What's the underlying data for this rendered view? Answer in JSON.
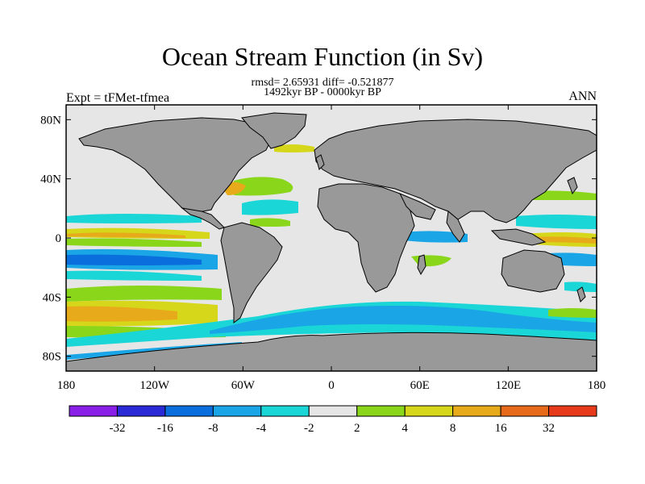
{
  "title": "Ocean Stream Function (in Sv)",
  "stats_line": "rmsd= 2.65931 diff= -0.521877",
  "period_line": "1492kyr BP - 0000kyr BP",
  "experiment_label": "Expt = tFMet-tfmea",
  "season_label": "ANN",
  "map": {
    "lon_range": [
      -180,
      180
    ],
    "lat_range": [
      -90,
      90
    ],
    "x_tick_labels": [
      "180",
      "120W",
      "60W",
      "0",
      "60E",
      "120E",
      "180"
    ],
    "y_tick_labels": [
      "80N",
      "40N",
      "0",
      "40S",
      "80S"
    ],
    "land_color": "#999999",
    "ocean_neutral_color": "#e6e6e6"
  },
  "colorbar": {
    "labels": [
      "-32",
      "-16",
      "-8",
      "-4",
      "-2",
      "2",
      "4",
      "8",
      "16",
      "32"
    ],
    "colors": [
      "#8a1fe8",
      "#2a2ad6",
      "#0a6edc",
      "#1aa6e6",
      "#1ad6d6",
      "#e6e6e6",
      "#8ad61a",
      "#d6d61a",
      "#e6aa1a",
      "#e66a1a",
      "#e63a1a"
    ]
  }
}
